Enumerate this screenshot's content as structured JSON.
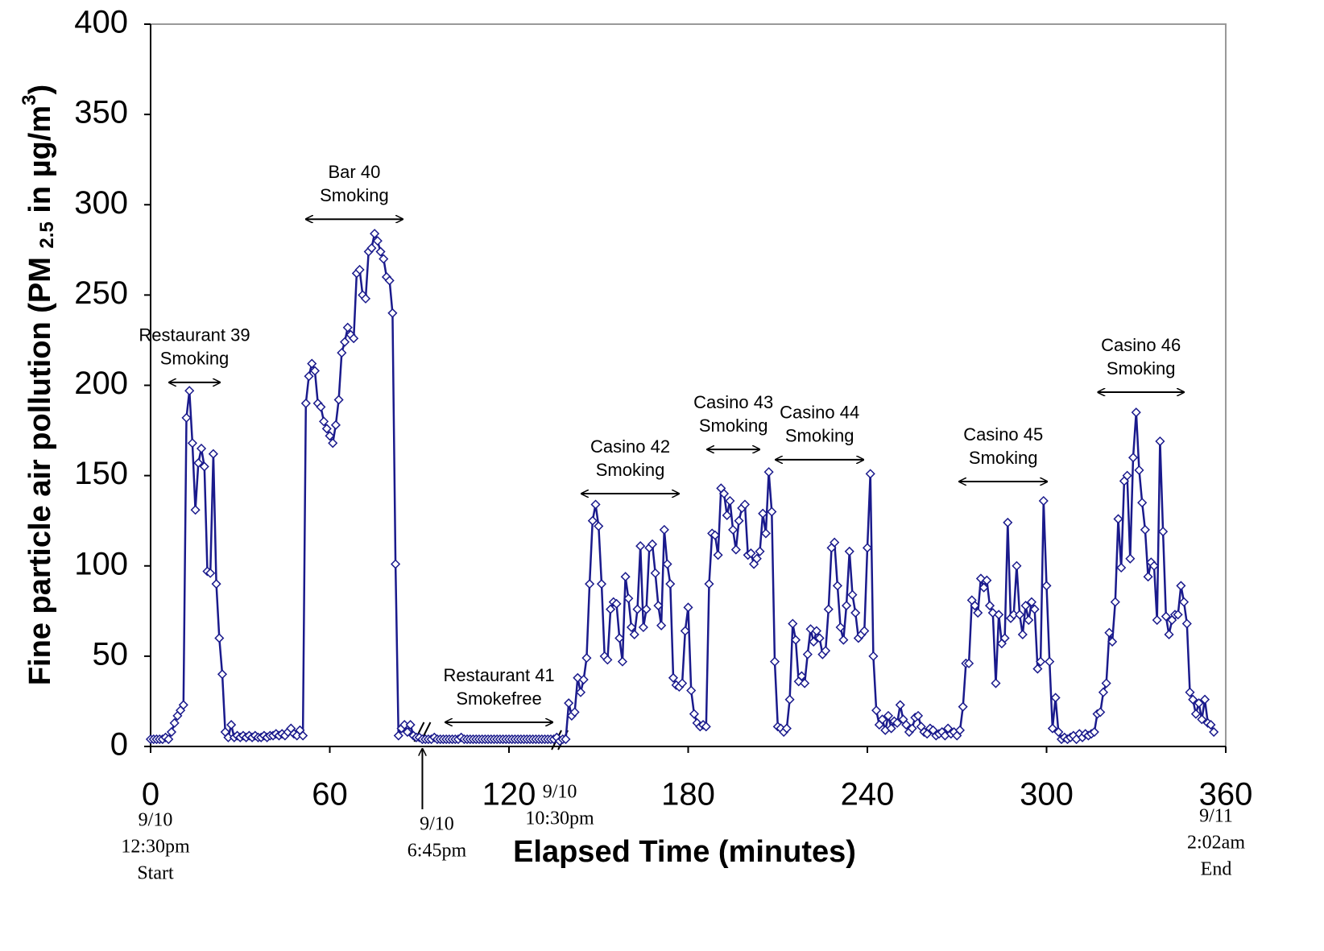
{
  "chart_data": {
    "type": "line",
    "y_label_parts": [
      "Fine particle air pollution (PM ",
      "2.5",
      " in µg/m",
      "3",
      ")"
    ],
    "x_label": "Elapsed Time (minutes)",
    "xlim": [
      0,
      360
    ],
    "xticks": [
      0,
      60,
      120,
      180,
      240,
      300,
      360
    ],
    "ylim": [
      0,
      400
    ],
    "yticks": [
      0,
      50,
      100,
      150,
      200,
      250,
      300,
      350,
      400
    ],
    "series": [
      {
        "color": "#1a1a8c",
        "x": [
          0,
          1,
          2,
          3,
          4,
          5,
          6,
          7,
          8,
          9,
          10,
          11,
          12,
          13,
          14,
          15,
          16,
          17,
          18,
          19,
          20,
          21,
          22,
          23,
          24,
          25,
          26,
          27,
          28,
          29,
          30,
          31,
          32,
          33,
          34,
          35,
          36,
          37,
          38,
          39,
          40,
          41,
          42,
          43,
          44,
          45,
          46,
          47,
          48,
          49,
          50,
          51,
          52,
          53,
          54,
          55,
          56,
          57,
          58,
          59,
          60,
          61,
          62,
          63,
          64,
          65,
          66,
          67,
          68,
          69,
          70,
          71,
          72,
          73,
          74,
          75,
          76,
          77,
          78,
          79,
          80,
          81,
          82,
          83,
          84,
          85,
          86,
          87,
          88,
          89,
          90,
          91,
          92,
          93,
          94,
          95,
          96,
          97,
          98,
          99,
          100,
          101,
          102,
          103,
          104,
          105,
          106,
          107,
          108,
          109,
          110,
          111,
          112,
          113,
          114,
          115,
          116,
          117,
          118,
          119,
          120,
          121,
          122,
          123,
          124,
          125,
          126,
          127,
          128,
          129,
          130,
          131,
          132,
          133,
          134,
          135,
          136,
          137,
          138,
          139,
          140,
          141,
          142,
          143,
          144,
          145,
          146,
          147,
          148,
          149,
          150,
          151,
          152,
          153,
          154,
          155,
          156,
          157,
          158,
          159,
          160,
          161,
          162,
          163,
          164,
          165,
          166,
          167,
          168,
          169,
          170,
          171,
          172,
          173,
          174,
          175,
          176,
          177,
          178,
          179,
          180,
          181,
          182,
          183,
          184,
          185,
          186,
          187,
          188,
          189,
          190,
          191,
          192,
          193,
          194,
          195,
          196,
          197,
          198,
          199,
          200,
          201,
          202,
          203,
          204,
          205,
          206,
          207,
          208,
          209,
          210,
          211,
          212,
          213,
          214,
          215,
          216,
          217,
          218,
          219,
          220,
          221,
          222,
          223,
          224,
          225,
          226,
          227,
          228,
          229,
          230,
          231,
          232,
          233,
          234,
          235,
          236,
          237,
          238,
          239,
          240,
          241,
          242,
          243,
          244,
          245,
          246,
          247,
          248,
          249,
          250,
          251,
          252,
          253,
          254,
          255,
          256,
          257,
          258,
          259,
          260,
          261,
          262,
          263,
          264,
          265,
          266,
          267,
          268,
          269,
          270,
          271,
          272,
          273,
          274,
          275,
          276,
          277,
          278,
          279,
          280,
          281,
          282,
          283,
          284,
          285,
          286,
          287,
          288,
          289,
          290,
          291,
          292,
          293,
          294,
          295,
          296,
          297,
          298,
          299,
          300,
          301,
          302,
          303,
          304,
          305,
          306,
          307,
          308,
          309,
          310,
          311,
          312,
          313,
          314,
          315,
          316,
          317,
          318,
          319,
          320,
          321,
          322,
          323,
          324,
          325,
          326,
          327,
          328,
          329,
          330,
          331,
          332,
          333,
          334,
          335,
          336,
          337,
          338,
          339,
          340,
          341,
          342,
          343,
          344,
          345,
          346,
          347,
          348,
          349,
          350,
          351,
          352,
          353,
          354,
          355,
          356
        ],
        "values": [
          4,
          4,
          4,
          4,
          4,
          5,
          4,
          8,
          13,
          17,
          20,
          23,
          182,
          197,
          168,
          131,
          157,
          165,
          155,
          97,
          96,
          162,
          90,
          60,
          40,
          8,
          5,
          12,
          5,
          6,
          5,
          6,
          5,
          6,
          5,
          6,
          5,
          5,
          6,
          5,
          6,
          6,
          7,
          6,
          7,
          6,
          8,
          10,
          7,
          6,
          9,
          6,
          190,
          205,
          212,
          208,
          190,
          188,
          180,
          176,
          172,
          168,
          178,
          192,
          218,
          224,
          232,
          228,
          226,
          262,
          264,
          250,
          248,
          274,
          276,
          284,
          280,
          274,
          270,
          260,
          258,
          240,
          101,
          6,
          10,
          12,
          8,
          12,
          6,
          5,
          5,
          4,
          4,
          4,
          4,
          5,
          4,
          4,
          4,
          4,
          4,
          4,
          4,
          4,
          5,
          4,
          4,
          4,
          4,
          4,
          4,
          4,
          4,
          4,
          4,
          4,
          4,
          4,
          4,
          4,
          4,
          4,
          4,
          4,
          4,
          4,
          4,
          4,
          4,
          4,
          4,
          4,
          4,
          4,
          4,
          4,
          5,
          3,
          4,
          4,
          24,
          17,
          19,
          38,
          30,
          37,
          49,
          90,
          125,
          134,
          122,
          90,
          50,
          48,
          76,
          80,
          79,
          60,
          47,
          94,
          82,
          66,
          62,
          76,
          111,
          66,
          76,
          110,
          112,
          96,
          78,
          67,
          120,
          101,
          90,
          38,
          34,
          33,
          35,
          64,
          77,
          31,
          18,
          13,
          11,
          12,
          11,
          90,
          118,
          117,
          106,
          143,
          140,
          128,
          136,
          120,
          109,
          125,
          132,
          134,
          106,
          107,
          101,
          104,
          108,
          129,
          118,
          152,
          130,
          47,
          11,
          10,
          8,
          10,
          26,
          68,
          59,
          36,
          39,
          35,
          51,
          65,
          58,
          64,
          60,
          51,
          53,
          76,
          110,
          113,
          89,
          66,
          59,
          78,
          108,
          84,
          74,
          60,
          62,
          64,
          110,
          151,
          50,
          20,
          12,
          15,
          9,
          17,
          10,
          14,
          13,
          23,
          15,
          12,
          8,
          10,
          16,
          17,
          11,
          8,
          7,
          10,
          9,
          6,
          7,
          8,
          6,
          10,
          7,
          8,
          6,
          9,
          22,
          46,
          46,
          81,
          78,
          74,
          93,
          88,
          92,
          78,
          74,
          35,
          73,
          57,
          60,
          124,
          71,
          73,
          100,
          73,
          62,
          78,
          70,
          80,
          76,
          43,
          47,
          136,
          89,
          47,
          10,
          27,
          8,
          4,
          5,
          4,
          5,
          6,
          4,
          7,
          5,
          7,
          6,
          7,
          8,
          18,
          19,
          30,
          35,
          63,
          58,
          80,
          126,
          99,
          147,
          150,
          104,
          160,
          185,
          153,
          135,
          120,
          94,
          102,
          100,
          70,
          169,
          119,
          72,
          62,
          70,
          73,
          73,
          89,
          80,
          68,
          30,
          26,
          18,
          24,
          15,
          26,
          13,
          12,
          8
        ]
      }
    ],
    "annotations": [
      {
        "lines": [
          "Restaurant 39",
          "Smoking"
        ],
        "span": [
          6.2,
          23.2
        ],
        "y": 201.6
      },
      {
        "lines": [
          "Bar 40",
          "Smoking"
        ],
        "span": [
          52,
          84.4
        ],
        "y": 292
      },
      {
        "lines": [
          "Restaurant 41",
          "Smokefree"
        ],
        "span": [
          98.7,
          134.6
        ],
        "y": 13.4
      },
      {
        "lines": [
          "Casino 42",
          "Smoking"
        ],
        "span": [
          144.3,
          176.9
        ],
        "y": 140
      },
      {
        "lines": [
          "Casino 43",
          "Smoking"
        ],
        "span": [
          186.4,
          203.9
        ],
        "y": 164.5
      },
      {
        "lines": [
          "Casino 44",
          "Smoking"
        ],
        "span": [
          209.3,
          238.7
        ],
        "y": 158.8
      },
      {
        "lines": [
          "Casino 45",
          "Smoking"
        ],
        "span": [
          270.8,
          300.2
        ],
        "y": 146.7
      },
      {
        "lines": [
          "Casino 46",
          "Smoking"
        ],
        "span": [
          317.2,
          346
        ],
        "y": 196.2
      }
    ],
    "time_notes": [
      {
        "lines": [
          "9/10",
          "12:30pm",
          "Start"
        ],
        "x": 0
      },
      {
        "lines": [
          "9/10",
          "6:45pm"
        ],
        "x": 91
      },
      {
        "lines": [
          "9/10",
          "10:30pm"
        ],
        "x": 137
      },
      {
        "lines": [
          "9/11",
          "2:02am",
          "End"
        ],
        "x": 360
      }
    ]
  }
}
